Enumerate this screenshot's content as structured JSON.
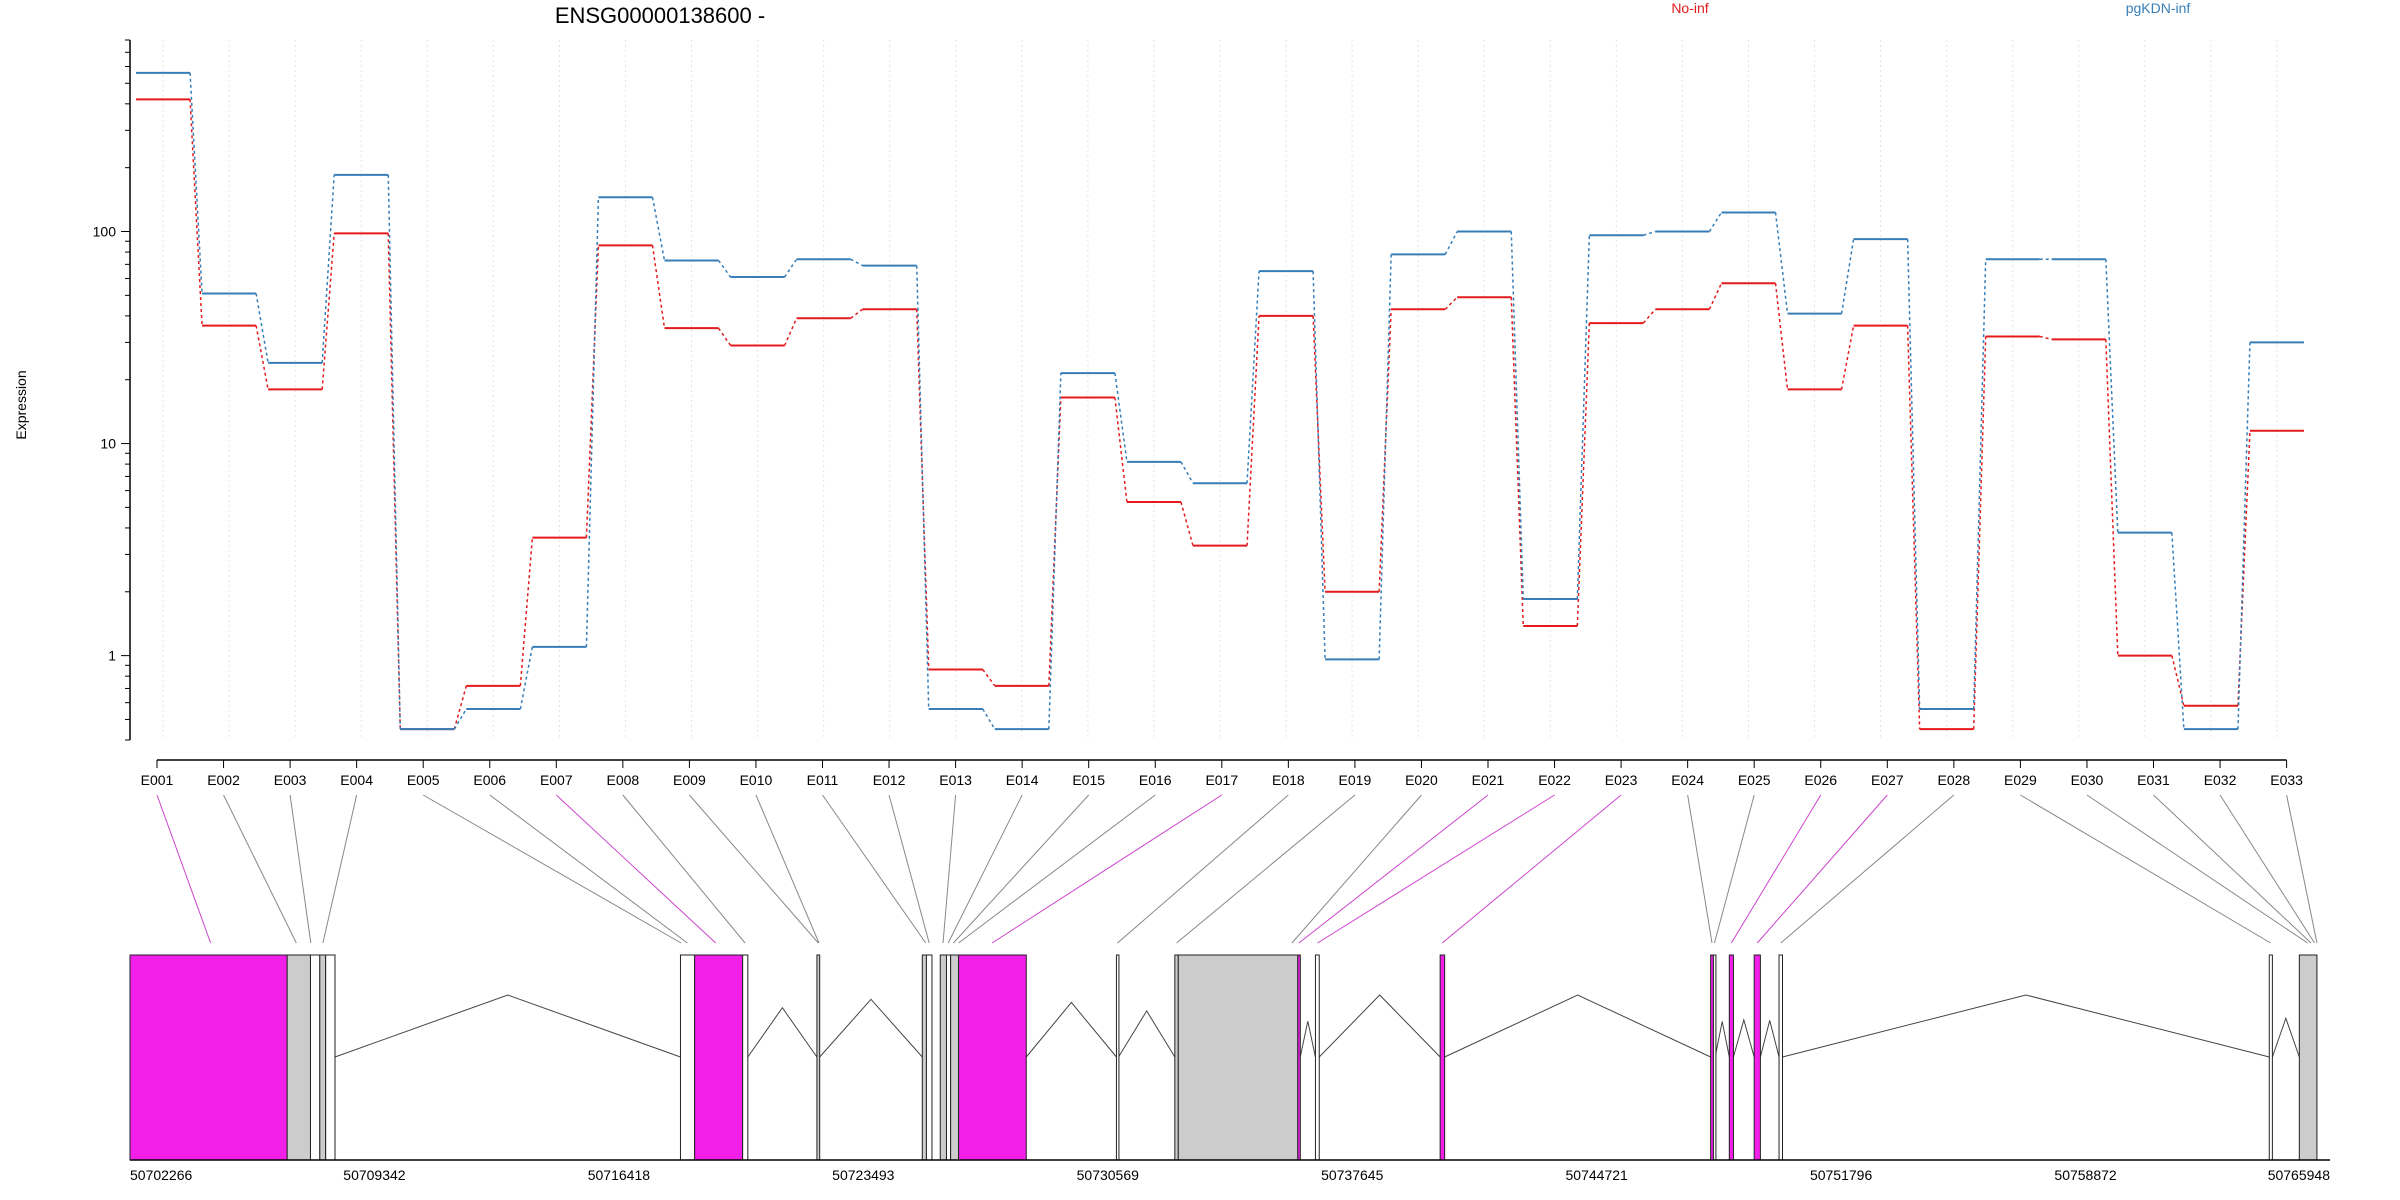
{
  "chart_data": {
    "type": "line",
    "title": "ENSG00000138600 -",
    "ylabel": "Expression",
    "xlabel": "",
    "y_scale": "log",
    "ylim": [
      0.4,
      800
    ],
    "y_ticks": [
      {
        "value": 1,
        "label": "1"
      },
      {
        "value": 10,
        "label": "10"
      },
      {
        "value": 100,
        "label": "100"
      }
    ],
    "grid": "vertical dotted lines at exon bins",
    "legend_position": "top-right",
    "categories": [
      "E001",
      "E002",
      "E003",
      "E004",
      "E005",
      "E006",
      "E007",
      "E008",
      "E009",
      "E010",
      "E011",
      "E012",
      "E013",
      "E014",
      "E015",
      "E016",
      "E017",
      "E018",
      "E019",
      "E020",
      "E021",
      "E022",
      "E023",
      "E024",
      "E025",
      "E026",
      "E027",
      "E028",
      "E029",
      "E030",
      "E031",
      "E032",
      "E033"
    ],
    "series": [
      {
        "name": "No-inf",
        "color": "#e41a1c",
        "values": [
          420,
          36,
          18,
          98,
          0.45,
          0.72,
          3.6,
          86,
          35,
          29,
          39,
          43,
          0.86,
          0.72,
          16.5,
          5.3,
          3.3,
          40,
          2.0,
          43,
          49,
          1.38,
          37,
          43,
          57,
          18,
          36,
          0.45,
          32,
          31,
          1.0,
          0.58,
          11.5
        ]
      },
      {
        "name": "pgKDN-inf",
        "color": "#377eb8",
        "values": [
          560,
          51,
          24,
          185,
          0.45,
          0.56,
          1.1,
          145,
          73,
          61,
          74,
          69,
          0.56,
          0.45,
          21.5,
          8.2,
          6.5,
          65,
          0.96,
          78,
          100,
          1.85,
          96,
          100,
          123,
          41,
          92,
          0.56,
          74,
          74,
          3.8,
          0.45,
          30
        ]
      }
    ],
    "gene_model": {
      "coordinate_labels": [
        "50702266",
        "50709342",
        "50716418",
        "50723493",
        "50730569",
        "50737645",
        "50744721",
        "50751796",
        "50758872",
        "50765948"
      ],
      "coord_range": [
        50702266,
        50765948
      ],
      "exons": [
        {
          "start": 50702266,
          "end": 50706816,
          "color": "#f11fe8"
        },
        {
          "start": 50706816,
          "end": 50707490,
          "color": "#cccccc"
        },
        {
          "start": 50707490,
          "end": 50707760,
          "color": "#ffffff"
        },
        {
          "start": 50707760,
          "end": 50707930,
          "color": "#cccccc"
        },
        {
          "start": 50707930,
          "end": 50708200,
          "color": "#ffffff"
        },
        {
          "start": 50718200,
          "end": 50718610,
          "color": "#ffffff"
        },
        {
          "start": 50718610,
          "end": 50720000,
          "color": "#f11fe8"
        },
        {
          "start": 50720000,
          "end": 50720150,
          "color": "#ffffff"
        },
        {
          "start": 50722150,
          "end": 50722230,
          "color": "#cccccc"
        },
        {
          "start": 50725200,
          "end": 50725320,
          "color": "#cccccc"
        },
        {
          "start": 50725320,
          "end": 50725480,
          "color": "#ffffff"
        },
        {
          "start": 50725720,
          "end": 50725900,
          "color": "#cccccc"
        },
        {
          "start": 50725900,
          "end": 50726020,
          "color": "#ffffff"
        },
        {
          "start": 50726020,
          "end": 50726250,
          "color": "#cccccc"
        },
        {
          "start": 50726250,
          "end": 50728210,
          "color": "#f11fe8"
        },
        {
          "start": 50730820,
          "end": 50730880,
          "color": "#ffffff"
        },
        {
          "start": 50732510,
          "end": 50732610,
          "color": "#cccccc"
        },
        {
          "start": 50732610,
          "end": 50736070,
          "color": "#cccccc"
        },
        {
          "start": 50736070,
          "end": 50736140,
          "color": "#f11fe8"
        },
        {
          "start": 50736580,
          "end": 50736690,
          "color": "#ffffff"
        },
        {
          "start": 50740190,
          "end": 50740320,
          "color": "#f11fe8"
        },
        {
          "start": 50748020,
          "end": 50748100,
          "color": "#f11fe8"
        },
        {
          "start": 50748100,
          "end": 50748150,
          "color": "#ffffff"
        },
        {
          "start": 50748560,
          "end": 50748680,
          "color": "#f11fe8"
        },
        {
          "start": 50749280,
          "end": 50749460,
          "color": "#f11fe8"
        },
        {
          "start": 50750000,
          "end": 50750100,
          "color": "#ffffff"
        },
        {
          "start": 50764190,
          "end": 50764280,
          "color": "#ffffff"
        },
        {
          "start": 50765060,
          "end": 50765570,
          "color": "#cccccc"
        }
      ],
      "bin_links": [
        {
          "bin": "E001",
          "coord": 50704600,
          "color": "#cc44cc"
        },
        {
          "bin": "E002",
          "coord": 50707080,
          "color": "#888888"
        },
        {
          "bin": "E003",
          "coord": 50707500,
          "color": "#888888"
        },
        {
          "bin": "E004",
          "coord": 50707850,
          "color": "#888888"
        },
        {
          "bin": "E005",
          "coord": 50718220,
          "color": "#888888"
        },
        {
          "bin": "E006",
          "coord": 50718400,
          "color": "#888888"
        },
        {
          "bin": "E007",
          "coord": 50719220,
          "color": "#cc44cc"
        },
        {
          "bin": "E008",
          "coord": 50720070,
          "color": "#888888"
        },
        {
          "bin": "E009",
          "coord": 50722190,
          "color": "#888888"
        },
        {
          "bin": "E010",
          "coord": 50722210,
          "color": "#888888"
        },
        {
          "bin": "E011",
          "coord": 50725300,
          "color": "#888888"
        },
        {
          "bin": "E012",
          "coord": 50725400,
          "color": "#888888"
        },
        {
          "bin": "E013",
          "coord": 50725800,
          "color": "#888888"
        },
        {
          "bin": "E014",
          "coord": 50725950,
          "color": "#888888"
        },
        {
          "bin": "E015",
          "coord": 50726100,
          "color": "#888888"
        },
        {
          "bin": "E016",
          "coord": 50726250,
          "color": "#888888"
        },
        {
          "bin": "E017",
          "coord": 50727220,
          "color": "#cc44cc"
        },
        {
          "bin": "E018",
          "coord": 50730850,
          "color": "#888888"
        },
        {
          "bin": "E019",
          "coord": 50732560,
          "color": "#888888"
        },
        {
          "bin": "E020",
          "coord": 50735900,
          "color": "#888888"
        },
        {
          "bin": "E021",
          "coord": 50736100,
          "color": "#cc44cc"
        },
        {
          "bin": "E022",
          "coord": 50736640,
          "color": "#cc44cc"
        },
        {
          "bin": "E023",
          "coord": 50740250,
          "color": "#cc44cc"
        },
        {
          "bin": "E024",
          "coord": 50748060,
          "color": "#888888"
        },
        {
          "bin": "E025",
          "coord": 50748130,
          "color": "#888888"
        },
        {
          "bin": "E026",
          "coord": 50748620,
          "color": "#cc44cc"
        },
        {
          "bin": "E027",
          "coord": 50749370,
          "color": "#cc44cc"
        },
        {
          "bin": "E028",
          "coord": 50750050,
          "color": "#888888"
        },
        {
          "bin": "E029",
          "coord": 50764230,
          "color": "#888888"
        },
        {
          "bin": "E030",
          "coord": 50765300,
          "color": "#888888"
        },
        {
          "bin": "E031",
          "coord": 50765400,
          "color": "#888888"
        },
        {
          "bin": "E032",
          "coord": 50765500,
          "color": "#888888"
        },
        {
          "bin": "E033",
          "coord": 50765570,
          "color": "#888888"
        }
      ]
    }
  }
}
